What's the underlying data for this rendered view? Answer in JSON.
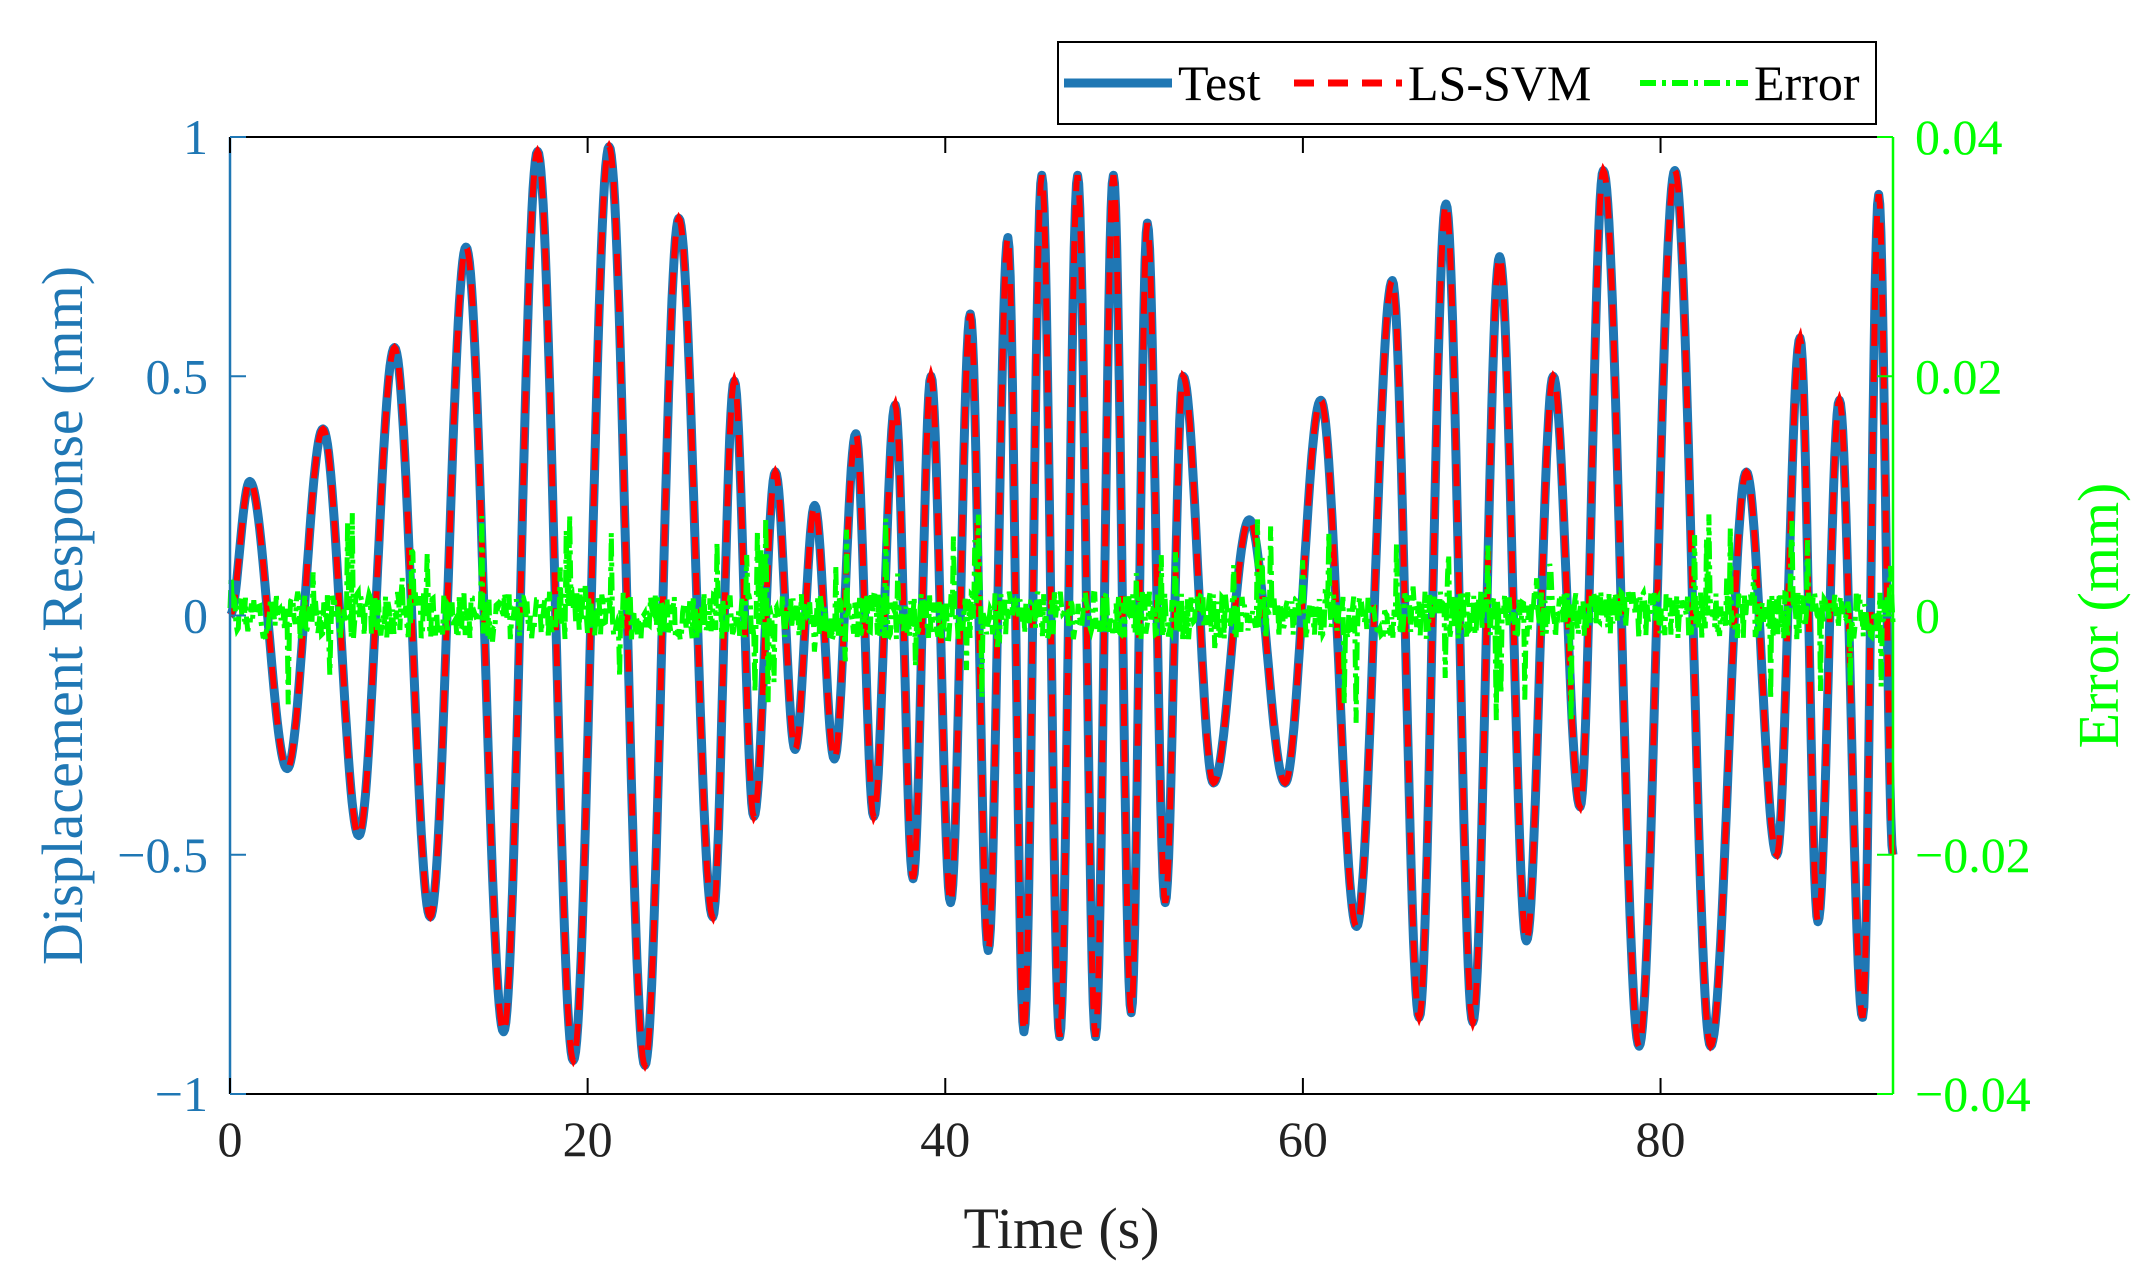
{
  "chart_data": {
    "type": "line",
    "title": "",
    "xlabel": "Time (s)",
    "ylabel_left": "Displacement Response  (mm)",
    "ylabel_right": "Error  (mm)",
    "xlim": [
      0,
      93
    ],
    "ylim_left": [
      -1,
      1
    ],
    "ylim_right": [
      -0.04,
      0.04
    ],
    "x_ticks": [
      0,
      20,
      40,
      60,
      80
    ],
    "x_tick_labels": [
      "0",
      "20",
      "40",
      "60",
      "80"
    ],
    "y_left_ticks": [
      -1,
      -0.5,
      0,
      0.5,
      1
    ],
    "y_left_tick_labels": [
      "−1",
      "−0.5",
      "0",
      "0.5",
      "1"
    ],
    "y_right_ticks": [
      -0.04,
      -0.02,
      0,
      0.02,
      0.04
    ],
    "y_right_tick_labels": [
      "−0.04",
      "−0.02",
      "0",
      "0.02",
      "0.04"
    ],
    "grid": false,
    "legend_position": "top-right (outside above plot)",
    "series": [
      {
        "name": "Test",
        "axis": "left",
        "color": "#1F77B4",
        "style": "solid",
        "description": "measured displacement response",
        "envelope_peaks": [
          {
            "t": 1.1,
            "v": 0.28
          },
          {
            "t": 3.2,
            "v": -0.32
          },
          {
            "t": 5.2,
            "v": 0.39
          },
          {
            "t": 7.2,
            "v": -0.46
          },
          {
            "t": 9.2,
            "v": 0.56
          },
          {
            "t": 11.2,
            "v": -0.63
          },
          {
            "t": 13.2,
            "v": 0.77
          },
          {
            "t": 15.3,
            "v": -0.87
          },
          {
            "t": 17.2,
            "v": 0.97
          },
          {
            "t": 19.2,
            "v": -0.93
          },
          {
            "t": 21.2,
            "v": 0.98
          },
          {
            "t": 23.2,
            "v": -0.94
          },
          {
            "t": 25.1,
            "v": 0.83
          },
          {
            "t": 27.0,
            "v": -0.63
          },
          {
            "t": 28.2,
            "v": 0.49
          },
          {
            "t": 29.3,
            "v": -0.42
          },
          {
            "t": 30.5,
            "v": 0.3
          },
          {
            "t": 31.6,
            "v": -0.28
          },
          {
            "t": 32.7,
            "v": 0.23
          },
          {
            "t": 33.8,
            "v": -0.3
          },
          {
            "t": 35.0,
            "v": 0.38
          },
          {
            "t": 36.0,
            "v": -0.42
          },
          {
            "t": 37.2,
            "v": 0.44
          },
          {
            "t": 38.2,
            "v": -0.55
          },
          {
            "t": 39.2,
            "v": 0.5
          },
          {
            "t": 40.3,
            "v": -0.6
          },
          {
            "t": 41.4,
            "v": 0.63
          },
          {
            "t": 42.4,
            "v": -0.7
          },
          {
            "t": 43.5,
            "v": 0.79
          },
          {
            "t": 44.4,
            "v": -0.87
          },
          {
            "t": 45.4,
            "v": 0.92
          },
          {
            "t": 46.4,
            "v": -0.88
          },
          {
            "t": 47.4,
            "v": 0.92
          },
          {
            "t": 48.4,
            "v": -0.88
          },
          {
            "t": 49.4,
            "v": 0.92
          },
          {
            "t": 50.4,
            "v": -0.83
          },
          {
            "t": 51.3,
            "v": 0.82
          },
          {
            "t": 52.3,
            "v": -0.6
          },
          {
            "t": 53.3,
            "v": 0.5
          },
          {
            "t": 55.0,
            "v": -0.35
          },
          {
            "t": 57.0,
            "v": 0.2
          },
          {
            "t": 59.0,
            "v": -0.35
          },
          {
            "t": 61.0,
            "v": 0.45
          },
          {
            "t": 63.0,
            "v": -0.65
          },
          {
            "t": 65.0,
            "v": 0.7
          },
          {
            "t": 66.5,
            "v": -0.84
          },
          {
            "t": 68.0,
            "v": 0.86
          },
          {
            "t": 69.5,
            "v": -0.85
          },
          {
            "t": 71.0,
            "v": 0.75
          },
          {
            "t": 72.5,
            "v": -0.68
          },
          {
            "t": 74.0,
            "v": 0.5
          },
          {
            "t": 75.5,
            "v": -0.4
          },
          {
            "t": 76.8,
            "v": 0.93
          },
          {
            "t": 78.8,
            "v": -0.9
          },
          {
            "t": 80.8,
            "v": 0.93
          },
          {
            "t": 82.8,
            "v": -0.9
          },
          {
            "t": 84.8,
            "v": 0.3
          },
          {
            "t": 86.5,
            "v": -0.5
          },
          {
            "t": 87.8,
            "v": 0.58
          },
          {
            "t": 88.8,
            "v": -0.64
          },
          {
            "t": 90.0,
            "v": 0.45
          },
          {
            "t": 91.3,
            "v": -0.84
          },
          {
            "t": 92.2,
            "v": 0.88
          },
          {
            "t": 93.0,
            "v": -0.5
          }
        ]
      },
      {
        "name": "LS-SVM",
        "axis": "left",
        "color": "#FF0000",
        "style": "dashed",
        "description": "LS-SVM prediction, visually overlapping the Test curve"
      },
      {
        "name": "Error",
        "axis": "right",
        "color": "#00FF00",
        "style": "dash-dot",
        "description": "prediction error, noise-like fluctuation",
        "typical_amplitude": 0.002,
        "max_amplitude": 0.009
      }
    ]
  }
}
